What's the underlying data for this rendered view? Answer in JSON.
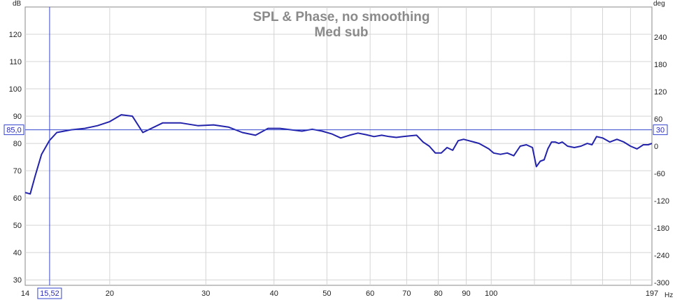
{
  "chart_data": {
    "type": "line",
    "title": "SPL & Phase, no smoothing",
    "subtitle": "Med sub",
    "y_unit_left": "dB",
    "y_unit_right": "deg",
    "x_unit": "Hz",
    "x_scale": "log",
    "xlim": [
      14,
      197
    ],
    "ylim": [
      28,
      130
    ],
    "ylim_right": [
      -306,
      306
    ],
    "grid": true,
    "x_ticks": [
      14,
      20,
      30,
      40,
      50,
      60,
      70,
      80,
      90,
      100,
      197
    ],
    "x_tick_labels": [
      "14",
      "20",
      "30",
      "40",
      "50",
      "60",
      "70",
      "80",
      "90",
      "100",
      "197"
    ],
    "x_minor_grid": [
      120,
      140,
      160,
      180
    ],
    "y_ticks": [
      30,
      40,
      50,
      60,
      70,
      80,
      90,
      100,
      110,
      120
    ],
    "y_right_ticks": [
      -300,
      -240,
      -180,
      -120,
      -60,
      0,
      60,
      120,
      180,
      240
    ],
    "series": [
      {
        "color": "#2222aa",
        "x": [
          14.0,
          14.3,
          14.6,
          15.0,
          15.5,
          16.0,
          17.0,
          18.0,
          19.0,
          20.0,
          21.0,
          22.0,
          23.0,
          25.0,
          27.0,
          29.0,
          31.0,
          33.0,
          35.0,
          37.0,
          39.0,
          41.0,
          43.0,
          45.0,
          47.0,
          49.0,
          51.0,
          53.0,
          55.0,
          57.0,
          59.0,
          61.0,
          63.0,
          65.0,
          67.0,
          69.0,
          71.0,
          73.0,
          75.0,
          77.0,
          79.0,
          81.0,
          83.0,
          85.0,
          87.0,
          89.0,
          91.0,
          93.0,
          95.0,
          97.0,
          99.0,
          101.0,
          104.0,
          107.0,
          110.0,
          113.0,
          116.0,
          119.0,
          121.0,
          123.0,
          125.0,
          127.0,
          129.0,
          131.0,
          133.0,
          135.0,
          138.0,
          142.0,
          146.0,
          150.0,
          153.0,
          156.0,
          160.0,
          165.0,
          170.0,
          175.0,
          180.0,
          185.0,
          190.0,
          194.0,
          197.0
        ],
        "values": [
          62.0,
          61.5,
          68.0,
          76.0,
          81.0,
          84.0,
          85.0,
          85.5,
          86.5,
          88.0,
          90.5,
          90.0,
          84.0,
          87.5,
          87.5,
          86.5,
          86.8,
          86.0,
          84.0,
          83.0,
          85.5,
          85.5,
          85.0,
          84.5,
          85.2,
          84.5,
          83.5,
          82.0,
          83.0,
          83.8,
          83.2,
          82.5,
          83.0,
          82.5,
          82.2,
          82.5,
          82.8,
          83.0,
          80.5,
          79.0,
          76.5,
          76.5,
          78.5,
          77.5,
          81.0,
          81.5,
          81.0,
          80.5,
          80.0,
          79.0,
          78.0,
          76.5,
          76.0,
          76.5,
          75.5,
          79.0,
          79.5,
          78.5,
          71.5,
          73.5,
          74.0,
          78.0,
          80.5,
          80.5,
          80.0,
          80.5,
          79.0,
          78.5,
          79.0,
          80.0,
          79.5,
          82.5,
          82.0,
          80.5,
          81.5,
          80.5,
          79.0,
          78.0,
          79.5,
          79.5,
          80.0
        ]
      }
    ],
    "cursor": {
      "x": 15.52,
      "y": 85.0,
      "x_label": "15,52",
      "y_label": "85,0",
      "y_right_label": "30",
      "color": "#3344cc"
    }
  }
}
